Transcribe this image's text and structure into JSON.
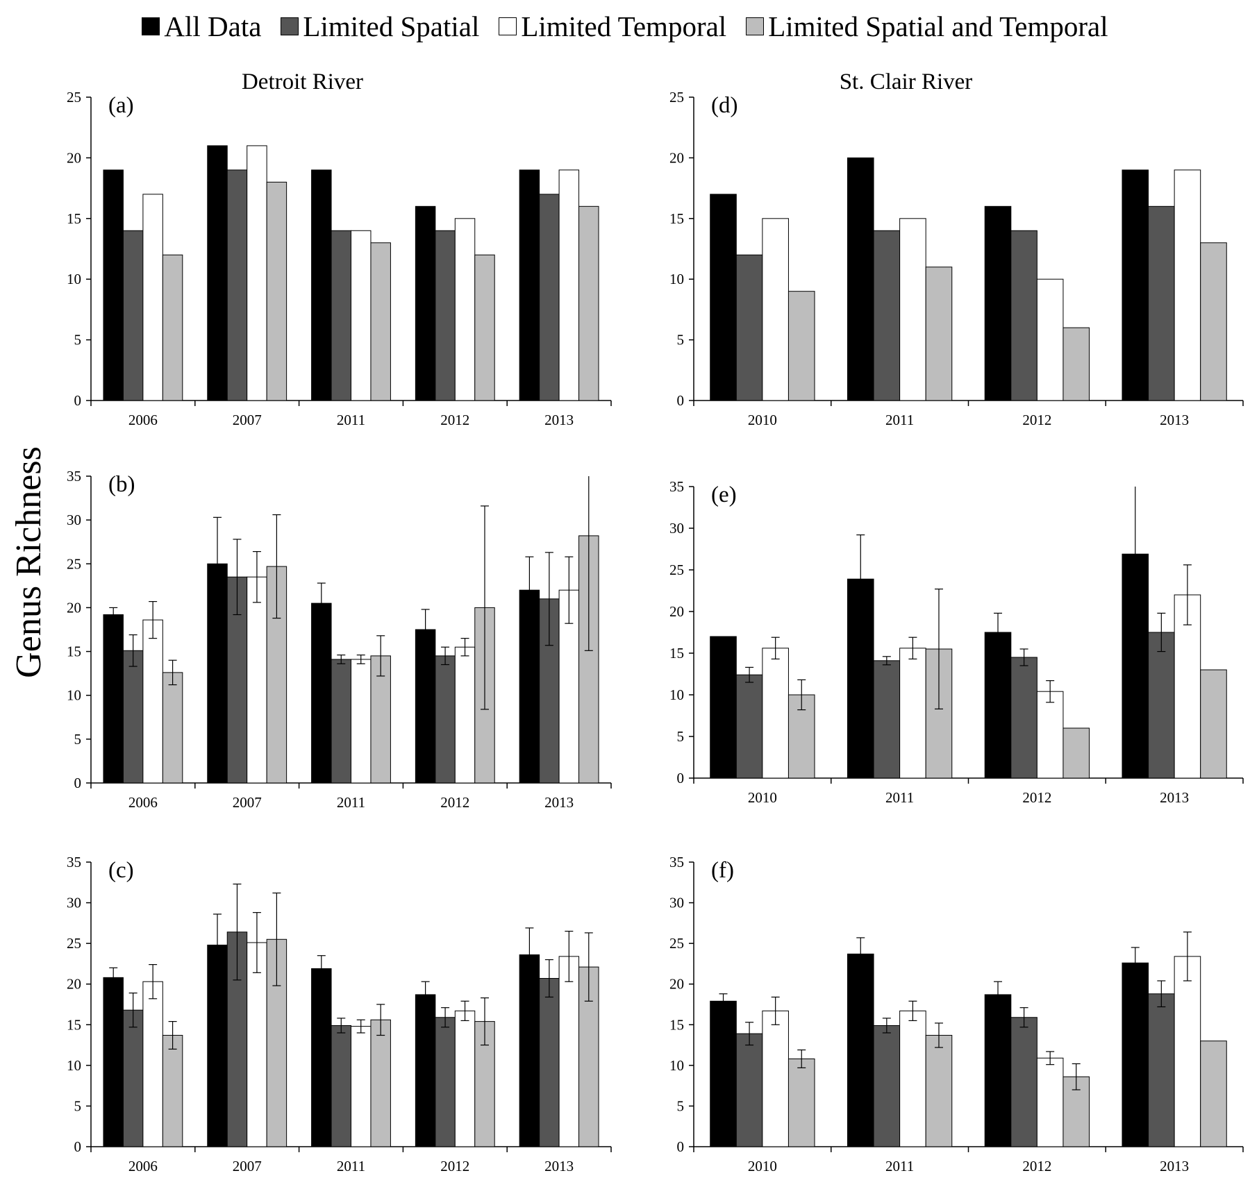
{
  "figure": {
    "ylabel": "Genus Richness",
    "column_titles": [
      "Detroit River",
      "St. Clair River"
    ],
    "colors": {
      "All Data": "#000000",
      "Limited Spatial": "#555555",
      "Limited Temporal": "#ffffff",
      "Limited Spatial and Temporal": "#bdbdbd"
    }
  },
  "legend": [
    {
      "label": "All Data",
      "color": "#000000"
    },
    {
      "label": "Limited Spatial",
      "color": "#555555"
    },
    {
      "label": "Limited Temporal",
      "color": "#ffffff"
    },
    {
      "label": "Limited Spatial and Temporal",
      "color": "#bdbdbd"
    }
  ],
  "chart_data": [
    {
      "id": "a",
      "panel_label": "(a)",
      "title": "Detroit River",
      "type": "bar",
      "categories": [
        "2006",
        "2007",
        "2011",
        "2012",
        "2013"
      ],
      "ylim": [
        0,
        25
      ],
      "yticks": [
        0,
        5,
        10,
        15,
        20,
        25
      ],
      "series": [
        {
          "name": "All Data",
          "values": [
            19,
            21,
            19,
            16,
            19
          ]
        },
        {
          "name": "Limited Spatial",
          "values": [
            14,
            19,
            14,
            14,
            17
          ]
        },
        {
          "name": "Limited Temporal",
          "values": [
            17,
            21,
            14,
            15,
            19
          ]
        },
        {
          "name": "Limited Spatial and Temporal",
          "values": [
            12,
            18,
            13,
            12,
            16
          ]
        }
      ]
    },
    {
      "id": "b",
      "panel_label": "(b)",
      "title": "",
      "type": "bar",
      "categories": [
        "2006",
        "2007",
        "2011",
        "2012",
        "2013"
      ],
      "ylim": [
        0,
        35
      ],
      "yticks": [
        0,
        5,
        10,
        15,
        20,
        25,
        30,
        35
      ],
      "series": [
        {
          "name": "All Data",
          "values": [
            19.2,
            25,
            20.5,
            17.5,
            22
          ],
          "errors": [
            0.8,
            5.3,
            2.3,
            2.3,
            3.8
          ]
        },
        {
          "name": "Limited Spatial",
          "values": [
            15.1,
            23.5,
            14.1,
            14.5,
            21
          ],
          "errors": [
            1.8,
            4.3,
            0.5,
            1.0,
            5.3
          ]
        },
        {
          "name": "Limited Temporal",
          "values": [
            18.6,
            23.5,
            14.1,
            15.5,
            22
          ],
          "errors": [
            2.1,
            2.9,
            0.5,
            1.0,
            3.8
          ]
        },
        {
          "name": "Limited Spatial and Temporal",
          "values": [
            12.6,
            24.7,
            14.5,
            20,
            28.2
          ],
          "errors": [
            1.4,
            5.9,
            2.3,
            11.6,
            13.1
          ]
        }
      ]
    },
    {
      "id": "c",
      "panel_label": "(c)",
      "title": "",
      "type": "bar",
      "categories": [
        "2006",
        "2007",
        "2011",
        "2012",
        "2013"
      ],
      "ylim": [
        0,
        35
      ],
      "yticks": [
        0,
        5,
        10,
        15,
        20,
        25,
        30,
        35
      ],
      "series": [
        {
          "name": "All Data",
          "values": [
            20.8,
            24.8,
            21.9,
            18.7,
            23.6
          ],
          "errors": [
            1.2,
            3.8,
            1.6,
            1.6,
            3.3
          ]
        },
        {
          "name": "Limited Spatial",
          "values": [
            16.8,
            26.4,
            14.9,
            15.9,
            20.7
          ],
          "errors": [
            2.1,
            5.9,
            0.9,
            1.2,
            2.3
          ]
        },
        {
          "name": "Limited Temporal",
          "values": [
            20.3,
            25.1,
            14.8,
            16.7,
            23.4
          ],
          "errors": [
            2.1,
            3.7,
            0.8,
            1.2,
            3.1
          ]
        },
        {
          "name": "Limited Spatial and Temporal",
          "values": [
            13.7,
            25.5,
            15.6,
            15.4,
            22.1
          ],
          "errors": [
            1.7,
            5.7,
            1.9,
            2.9,
            4.2
          ]
        }
      ]
    },
    {
      "id": "d",
      "panel_label": "(d)",
      "title": "St. Clair River",
      "type": "bar",
      "categories": [
        "2010",
        "2011",
        "2012",
        "2013"
      ],
      "ylim": [
        0,
        25
      ],
      "yticks": [
        0,
        5,
        10,
        15,
        20,
        25
      ],
      "series": [
        {
          "name": "All Data",
          "values": [
            17,
            20,
            16,
            19
          ]
        },
        {
          "name": "Limited Spatial",
          "values": [
            12,
            14,
            14,
            16
          ]
        },
        {
          "name": "Limited Temporal",
          "values": [
            15,
            15,
            10,
            19
          ]
        },
        {
          "name": "Limited Spatial and Temporal",
          "values": [
            9,
            11,
            6,
            13
          ]
        }
      ]
    },
    {
      "id": "e",
      "panel_label": "(e)",
      "title": "",
      "type": "bar",
      "categories": [
        "2010",
        "2011",
        "2012",
        "2013"
      ],
      "ylim": [
        0,
        35
      ],
      "yticks": [
        0,
        5,
        10,
        15,
        20,
        25,
        30,
        35
      ],
      "series": [
        {
          "name": "All Data",
          "values": [
            17,
            23.9,
            17.5,
            26.9
          ],
          "errors": [
            0,
            5.3,
            2.3,
            8.4
          ]
        },
        {
          "name": "Limited Spatial",
          "values": [
            12.4,
            14.1,
            14.5,
            17.5
          ],
          "errors": [
            0.9,
            0.5,
            1.0,
            2.3
          ]
        },
        {
          "name": "Limited Temporal",
          "values": [
            15.6,
            15.6,
            10.4,
            22
          ],
          "errors": [
            1.3,
            1.3,
            1.3,
            3.6
          ]
        },
        {
          "name": "Limited Spatial and Temporal",
          "values": [
            10,
            15.5,
            6,
            13
          ],
          "errors": [
            1.8,
            7.2,
            0,
            0
          ]
        }
      ]
    },
    {
      "id": "f",
      "panel_label": "(f)",
      "title": "",
      "type": "bar",
      "categories": [
        "2010",
        "2011",
        "2012",
        "2013"
      ],
      "ylim": [
        0,
        35
      ],
      "yticks": [
        0,
        5,
        10,
        15,
        20,
        25,
        30,
        35
      ],
      "series": [
        {
          "name": "All Data",
          "values": [
            17.9,
            23.7,
            18.7,
            22.6
          ],
          "errors": [
            0.9,
            2.0,
            1.6,
            1.9
          ]
        },
        {
          "name": "Limited Spatial",
          "values": [
            13.9,
            14.9,
            15.9,
            18.8
          ],
          "errors": [
            1.4,
            0.9,
            1.2,
            1.6
          ]
        },
        {
          "name": "Limited Temporal",
          "values": [
            16.7,
            16.7,
            10.9,
            23.4
          ],
          "errors": [
            1.7,
            1.2,
            0.8,
            3.0
          ]
        },
        {
          "name": "Limited Spatial and Temporal",
          "values": [
            10.8,
            13.7,
            8.6,
            13
          ],
          "errors": [
            1.1,
            1.5,
            1.6,
            0
          ]
        }
      ]
    }
  ]
}
